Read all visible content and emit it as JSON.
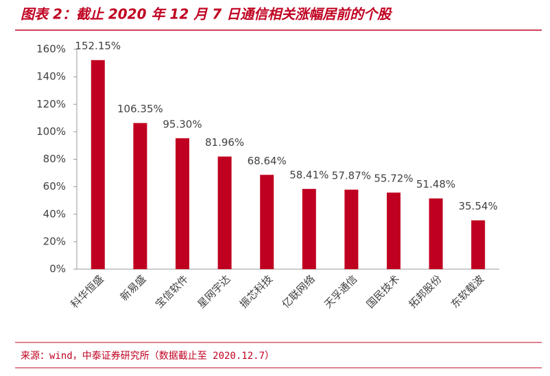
{
  "chart_data": {
    "type": "bar",
    "title": "图表 2：截止 2020 年 12 月 7 日通信相关涨幅居前的个股",
    "source": "来源：wind，中泰证券研究所（数据截止至 2020.12.7）",
    "categories": [
      "科华恒盛",
      "新易盛",
      "宝信软件",
      "星网宇达",
      "振芯科技",
      "亿联网络",
      "天孚通信",
      "国民技术",
      "拓邦股份",
      "东软载波"
    ],
    "values": [
      152.15,
      106.35,
      95.3,
      81.96,
      68.64,
      58.41,
      57.87,
      55.72,
      51.48,
      35.54
    ],
    "value_labels": [
      "152.15%",
      "106.35%",
      "95.30%",
      "81.96%",
      "68.64%",
      "58.41%",
      "57.87%",
      "55.72%",
      "51.48%",
      "35.54%"
    ],
    "color": "#c00020",
    "ylim": [
      0,
      160
    ],
    "yticks": [
      {
        "value": 0,
        "label": "0%"
      },
      {
        "value": 20,
        "label": "20%"
      },
      {
        "value": 40,
        "label": "40%"
      },
      {
        "value": 60,
        "label": "60%"
      },
      {
        "value": 80,
        "label": "80%"
      },
      {
        "value": 100,
        "label": "100%"
      },
      {
        "value": 120,
        "label": "120%"
      },
      {
        "value": 140,
        "label": "140%"
      },
      {
        "value": 160,
        "label": "160%"
      }
    ],
    "grid": false
  }
}
